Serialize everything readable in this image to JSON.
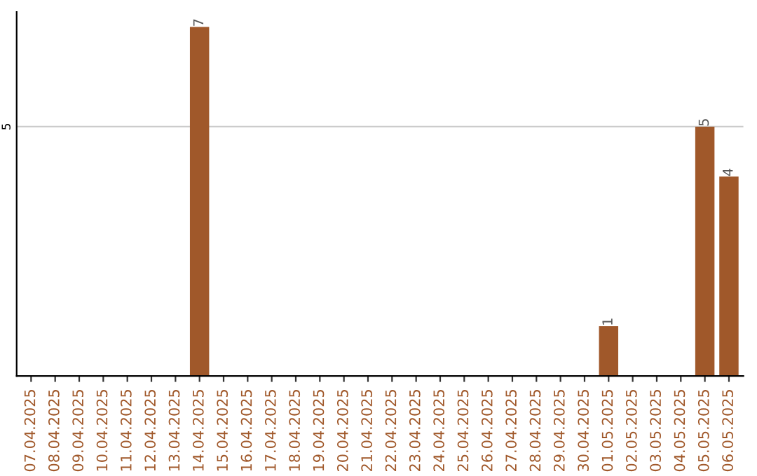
{
  "chart_data": {
    "type": "bar",
    "categories": [
      "07.04.2025",
      "08.04.2025",
      "09.04.2025",
      "10.04.2025",
      "11.04.2025",
      "12.04.2025",
      "13.04.2025",
      "14.04.2025",
      "15.04.2025",
      "16.04.2025",
      "17.04.2025",
      "18.04.2025",
      "19.04.2025",
      "20.04.2025",
      "21.04.2025",
      "22.04.2025",
      "23.04.2025",
      "24.04.2025",
      "25.04.2025",
      "26.04.2025",
      "27.04.2025",
      "28.04.2025",
      "29.04.2025",
      "30.04.2025",
      "01.05.2025",
      "02.05.2025",
      "03.05.2025",
      "04.05.2025",
      "05.05.2025",
      "06.05.2025"
    ],
    "values": [
      0,
      0,
      0,
      0,
      0,
      0,
      0,
      7,
      0,
      0,
      0,
      0,
      0,
      0,
      0,
      0,
      0,
      0,
      0,
      0,
      0,
      0,
      0,
      0,
      1,
      0,
      0,
      0,
      5,
      4
    ],
    "value_labels": [
      null,
      null,
      null,
      null,
      null,
      null,
      null,
      "7",
      null,
      null,
      null,
      null,
      null,
      null,
      null,
      null,
      null,
      null,
      null,
      null,
      null,
      null,
      null,
      null,
      "1",
      null,
      null,
      null,
      "5",
      "4"
    ],
    "color": "#a0582a",
    "ylim": [
      0,
      7.3
    ],
    "yticks": [
      5
    ],
    "grid": "y"
  }
}
